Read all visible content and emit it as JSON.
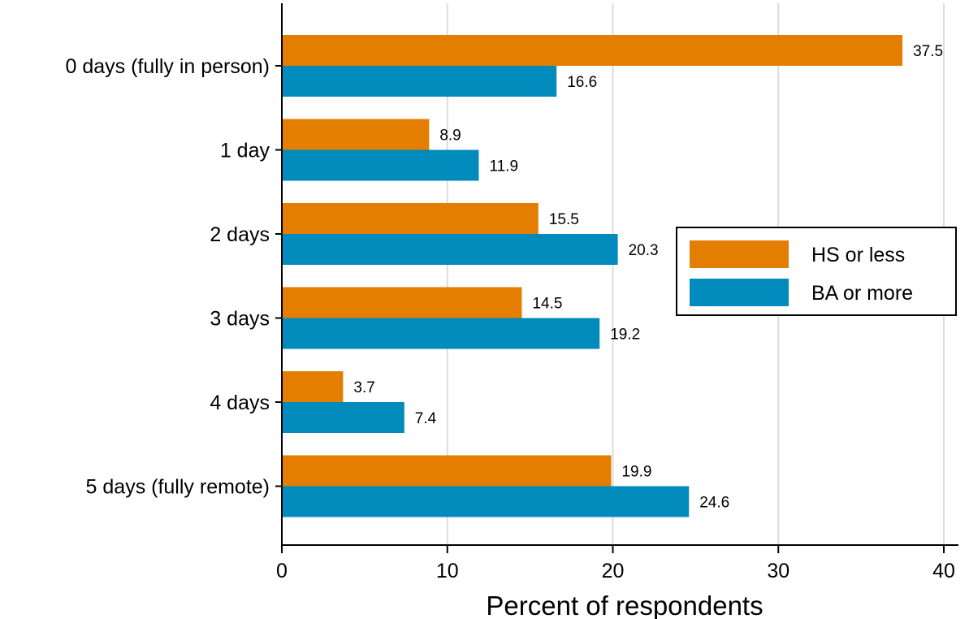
{
  "chart_data": {
    "type": "bar",
    "orientation": "horizontal",
    "title": "",
    "xlabel": "Percent of respondents",
    "ylabel": "",
    "xlim": [
      0,
      40
    ],
    "xticks": [
      0,
      10,
      20,
      30,
      40
    ],
    "grid": "vertical",
    "legend_position": "right",
    "categories": [
      "0 days (fully in person)",
      "1 day",
      "2 days",
      "3 days",
      "4 days",
      "5 days (fully remote)"
    ],
    "series": [
      {
        "name": "HS or less",
        "color": "#E37E00",
        "values": [
          37.5,
          8.9,
          15.5,
          14.5,
          3.7,
          19.9
        ],
        "labels": [
          "37.5",
          "8.9",
          "15.5",
          "14.5",
          "3.7",
          "19.9"
        ]
      },
      {
        "name": "BA or more",
        "color": "#008BBC",
        "values": [
          16.6,
          11.9,
          20.3,
          19.2,
          7.4,
          24.6
        ],
        "labels": [
          "16.6",
          "11.9",
          "20.3",
          "19.2",
          "7.4",
          "24.6"
        ]
      }
    ]
  }
}
